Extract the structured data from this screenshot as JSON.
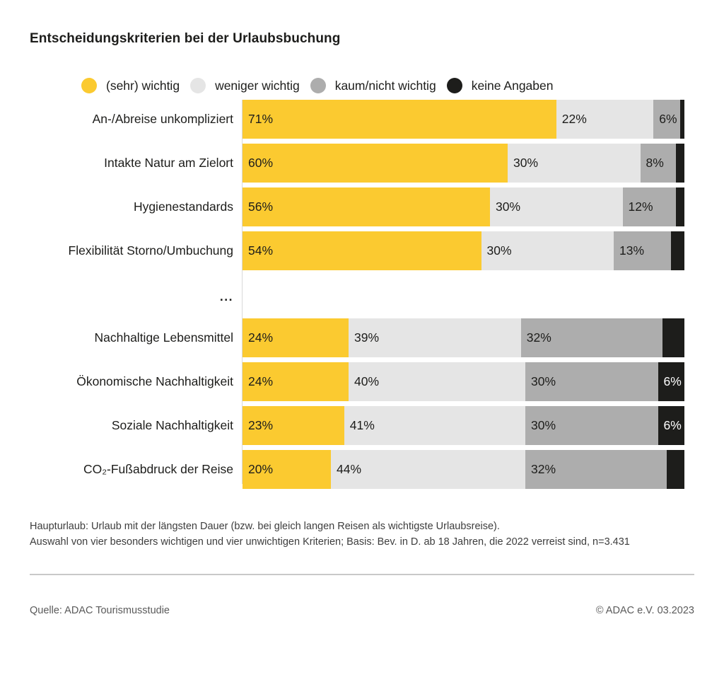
{
  "title": "Entscheidungskriterien bei der Urlaubsbuchung",
  "colors": {
    "yellow": "#fbca30",
    "light_gray": "#e5e5e5",
    "mid_gray": "#adadad",
    "black": "#1d1d1b"
  },
  "legend": [
    {
      "label": "(sehr) wichtig",
      "color_key": "yellow"
    },
    {
      "label": "weniger wichtig",
      "color_key": "light_gray"
    },
    {
      "label": "kaum/nicht wichtig",
      "color_key": "mid_gray"
    },
    {
      "label": "keine Angaben",
      "color_key": "black"
    }
  ],
  "chart_data": {
    "type": "bar",
    "orientation": "horizontal",
    "stacked": true,
    "unit": "%",
    "xlim": [
      0,
      100
    ],
    "series_names": [
      "(sehr) wichtig",
      "weniger wichtig",
      "kaum/nicht wichtig",
      "keine Angaben"
    ],
    "series_keys": [
      "yellow",
      "light_gray",
      "mid_gray",
      "black"
    ],
    "separator_after_index": 3,
    "separator_text": "...",
    "rows": [
      {
        "category": "An-/Abreise unkompliziert",
        "values": [
          71,
          22,
          6,
          1
        ],
        "labels": [
          "71%",
          "22%",
          "6%",
          ""
        ]
      },
      {
        "category": "Intakte Natur am Zielort",
        "values": [
          60,
          30,
          8,
          2
        ],
        "labels": [
          "60%",
          "30%",
          "8%",
          ""
        ]
      },
      {
        "category": "Hygienestandards",
        "values": [
          56,
          30,
          12,
          2
        ],
        "labels": [
          "56%",
          "30%",
          "12%",
          ""
        ]
      },
      {
        "category": "Flexibilität Storno/Umbuchung",
        "values": [
          54,
          30,
          13,
          3
        ],
        "labels": [
          "54%",
          "30%",
          "13%",
          ""
        ]
      },
      {
        "category": "Nachhaltige Lebensmittel",
        "values": [
          24,
          39,
          32,
          5
        ],
        "labels": [
          "24%",
          "39%",
          "32%",
          ""
        ]
      },
      {
        "category": "Ökonomische Nachhaltigkeit",
        "values": [
          24,
          40,
          30,
          6
        ],
        "labels": [
          "24%",
          "40%",
          "30%",
          "6%"
        ]
      },
      {
        "category": "Soziale Nachhaltigkeit",
        "values": [
          23,
          41,
          30,
          6
        ],
        "labels": [
          "23%",
          "41%",
          "30%",
          "6%"
        ]
      },
      {
        "category": "CO₂-Fußabdruck der Reise",
        "values": [
          20,
          44,
          32,
          4
        ],
        "labels": [
          "20%",
          "44%",
          "32%",
          ""
        ]
      }
    ]
  },
  "footnote": {
    "line1": "Haupturlaub: Urlaub mit der längsten Dauer (bzw. bei gleich langen Reisen als wichtigste Urlaubsreise).",
    "line2": "Auswahl von vier besonders wichtigen und vier unwichtigen Kriterien; Basis: Bev. in D. ab 18 Jahren, die 2022 verreist sind, n=3.431"
  },
  "source": {
    "left": "Quelle: ADAC Tourismusstudie",
    "right": "© ADAC e.V. 03.2023"
  }
}
